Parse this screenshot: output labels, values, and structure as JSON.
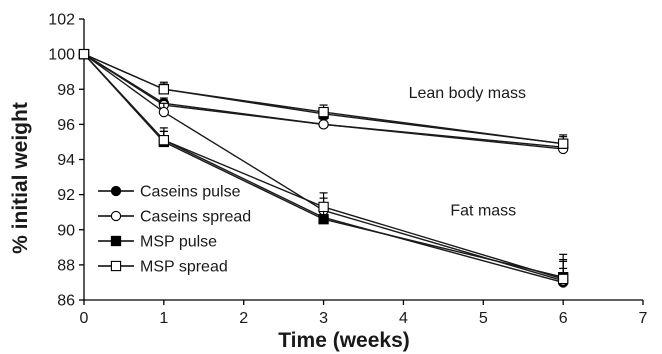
{
  "chart_data": {
    "type": "line",
    "xlabel": "Time (weeks)",
    "ylabel": "% initial weight",
    "xlim": [
      0,
      7
    ],
    "ylim": [
      86,
      102
    ],
    "xticks": [
      0,
      1,
      2,
      3,
      4,
      5,
      6,
      7
    ],
    "yticks": [
      86,
      88,
      90,
      92,
      94,
      96,
      98,
      100,
      102
    ],
    "grid": false,
    "legend_position": "bottom-left",
    "x": [
      0,
      1,
      3,
      6
    ],
    "annotations": [
      {
        "text": "Lean body mass",
        "x": 4.8,
        "y": 97.5
      },
      {
        "text": "Fat mass",
        "x": 5.0,
        "y": 90.8
      }
    ],
    "legend": [
      {
        "name": "Caseins pulse",
        "marker": "circle",
        "fill": "filled"
      },
      {
        "name": "Caseins spread",
        "marker": "circle",
        "fill": "open"
      },
      {
        "name": "MSP pulse",
        "marker": "square",
        "fill": "filled"
      },
      {
        "name": "MSP spread",
        "marker": "square",
        "fill": "open"
      }
    ],
    "series": [
      {
        "legend_index": 0,
        "group": "Lean body mass",
        "values": [
          100,
          97.2,
          96.0,
          94.7
        ],
        "err_plus": [
          0,
          0.3,
          0.3,
          0.3
        ]
      },
      {
        "legend_index": 1,
        "group": "Lean body mass",
        "values": [
          100,
          97.1,
          96.0,
          94.6
        ],
        "err_plus": [
          0,
          0.3,
          0.3,
          0.3
        ]
      },
      {
        "legend_index": 2,
        "group": "Lean body mass",
        "values": [
          100,
          98.0,
          96.6,
          94.9
        ],
        "err_plus": [
          0,
          0.3,
          0.3,
          0.4
        ]
      },
      {
        "legend_index": 3,
        "group": "Lean body mass",
        "values": [
          100,
          98.0,
          96.7,
          94.9
        ],
        "err_plus": [
          0,
          0.4,
          0.4,
          0.5
        ]
      },
      {
        "legend_index": 0,
        "group": "Fat mass",
        "values": [
          100,
          95.1,
          90.7,
          87.0
        ],
        "err_plus": [
          0,
          0.5,
          0.5,
          0.8
        ]
      },
      {
        "legend_index": 1,
        "group": "Fat mass",
        "values": [
          100,
          96.7,
          91.1,
          87.1
        ],
        "err_plus": [
          0,
          0.5,
          0.7,
          1.1
        ]
      },
      {
        "legend_index": 2,
        "group": "Fat mass",
        "values": [
          100,
          95.0,
          90.6,
          87.3
        ],
        "err_plus": [
          0,
          0.6,
          0.5,
          1.0
        ]
      },
      {
        "legend_index": 3,
        "group": "Fat mass",
        "values": [
          100,
          95.1,
          91.3,
          87.2
        ],
        "err_plus": [
          0,
          0.7,
          0.8,
          1.4
        ]
      }
    ],
    "colors": {
      "line": "#1a1a1a",
      "marker_fill": "#000000",
      "marker_open_fill": "#ffffff"
    }
  }
}
